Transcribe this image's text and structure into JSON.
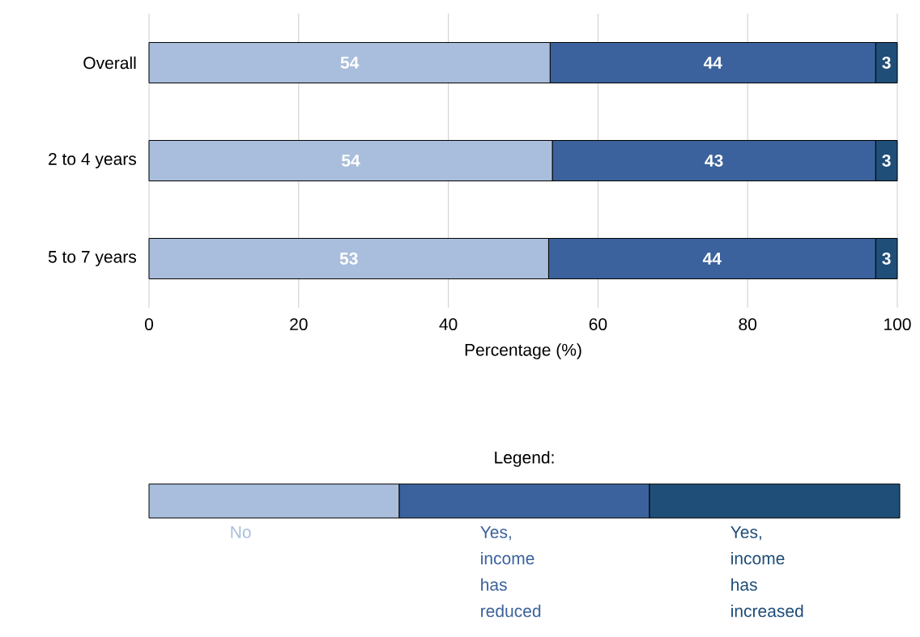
{
  "chart_data": {
    "type": "bar",
    "orientation": "horizontal",
    "stacked": true,
    "categories": [
      "Overall",
      "2 to 4 years",
      "5 to 7 years"
    ],
    "series": [
      {
        "name": "No",
        "color": "#a9bedc",
        "values": [
          53.6,
          53.9,
          53.4
        ],
        "value_labels": [
          "54",
          "54",
          "53"
        ]
      },
      {
        "name": "Yes, income has reduced",
        "color": "#3b629c",
        "values": [
          43.5,
          43.2,
          43.7
        ],
        "value_labels": [
          "44",
          "43",
          "44"
        ]
      },
      {
        "name": "Yes, income has increased",
        "color": "#1f4e79",
        "values": [
          2.9,
          2.9,
          2.9
        ],
        "value_labels": [
          "3",
          "3",
          "3"
        ]
      }
    ],
    "xlabel": "Percentage (%)",
    "legend_title": "Legend:",
    "xlim": [
      0,
      100
    ],
    "xticks": [
      0,
      20,
      40,
      60,
      80,
      100
    ],
    "grid": "x",
    "legend": "bottom"
  }
}
